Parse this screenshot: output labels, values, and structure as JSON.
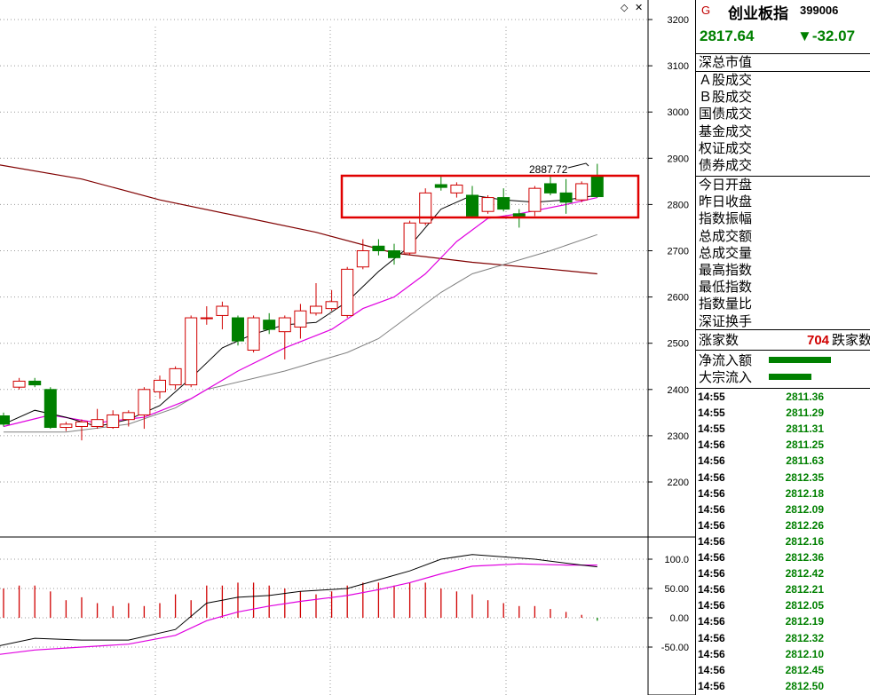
{
  "header": {
    "flag": "G",
    "name": "创业板指",
    "code": "399006"
  },
  "quote": {
    "price": "2817.64",
    "change": "▼-32.07"
  },
  "labels": {
    "group1": [
      "深总市值"
    ],
    "group2": [
      "Ａ股成交",
      "Ｂ股成交",
      "国债成交",
      "基金成交",
      "权证成交",
      "债券成交"
    ],
    "group3": [
      "今日开盘",
      "昨日收盘",
      "指数振幅",
      "总成交额",
      "总成交量",
      "最高指数",
      "最低指数",
      "指数量比",
      "深证换手"
    ],
    "rise": "涨家数",
    "fall_count": "704",
    "fall": "跌家数",
    "flow1": "净流入额",
    "flow2": "大宗流入"
  },
  "ticks": [
    [
      "14:55",
      "2811.36"
    ],
    [
      "14:55",
      "2811.29"
    ],
    [
      "14:55",
      "2811.31"
    ],
    [
      "14:56",
      "2811.25"
    ],
    [
      "14:56",
      "2811.63"
    ],
    [
      "14:56",
      "2812.35"
    ],
    [
      "14:56",
      "2812.18"
    ],
    [
      "14:56",
      "2812.09"
    ],
    [
      "14:56",
      "2812.26"
    ],
    [
      "14:56",
      "2812.16"
    ],
    [
      "14:56",
      "2812.36"
    ],
    [
      "14:56",
      "2812.42"
    ],
    [
      "14:56",
      "2812.21"
    ],
    [
      "14:56",
      "2812.05"
    ],
    [
      "14:56",
      "2812.19"
    ],
    [
      "14:56",
      "2812.32"
    ],
    [
      "14:56",
      "2812.10"
    ],
    [
      "14:56",
      "2812.45"
    ],
    [
      "14:56",
      "2812.50"
    ]
  ],
  "colors": {
    "up": "#d00000",
    "down": "#008000",
    "ma5": "#000000",
    "ma10": "#e000e0",
    "ma20": "#808080",
    "ma60": "#800000",
    "highlight": "#e00000"
  },
  "chart_data": {
    "type": "candlestick",
    "price_axis": {
      "ticks": [
        2200,
        2300,
        2400,
        2500,
        2600,
        2700,
        2800,
        2900,
        3000,
        3100,
        3200
      ]
    },
    "indicator_axis": {
      "ticks": [
        "100.0",
        "50.00",
        "0.00",
        "-50.00"
      ]
    },
    "annotation": "2887.72",
    "candles": [
      [
        2343,
        2325,
        2350,
        2320
      ],
      [
        2405,
        2418,
        2425,
        2400
      ],
      [
        2418,
        2410,
        2425,
        2405
      ],
      [
        2400,
        2318,
        2405,
        2315
      ],
      [
        2318,
        2325,
        2330,
        2310
      ],
      [
        2320,
        2330,
        2335,
        2290
      ],
      [
        2320,
        2335,
        2358,
        2315
      ],
      [
        2318,
        2345,
        2355,
        2315
      ],
      [
        2335,
        2350,
        2355,
        2320
      ],
      [
        2345,
        2400,
        2405,
        2315
      ],
      [
        2395,
        2420,
        2430,
        2380
      ],
      [
        2410,
        2445,
        2450,
        2400
      ],
      [
        2410,
        2555,
        2560,
        2405
      ],
      [
        2555,
        2555,
        2580,
        2540
      ],
      [
        2560,
        2580,
        2590,
        2530
      ],
      [
        2555,
        2505,
        2560,
        2495
      ],
      [
        2485,
        2555,
        2560,
        2480
      ],
      [
        2550,
        2530,
        2565,
        2520
      ],
      [
        2525,
        2555,
        2560,
        2465
      ],
      [
        2535,
        2570,
        2585,
        2510
      ],
      [
        2565,
        2580,
        2630,
        2560
      ],
      [
        2575,
        2590,
        2615,
        2570
      ],
      [
        2560,
        2660,
        2665,
        2555
      ],
      [
        2665,
        2700,
        2725,
        2660
      ],
      [
        2710,
        2700,
        2725,
        2690
      ],
      [
        2700,
        2685,
        2715,
        2670
      ],
      [
        2695,
        2760,
        2765,
        2690
      ],
      [
        2760,
        2825,
        2835,
        2755
      ],
      [
        2843,
        2837,
        2860,
        2830
      ],
      [
        2825,
        2842,
        2848,
        2815
      ],
      [
        2820,
        2775,
        2840,
        2770
      ],
      [
        2785,
        2815,
        2820,
        2780
      ],
      [
        2815,
        2790,
        2835,
        2785
      ],
      [
        2780,
        2775,
        2790,
        2750
      ],
      [
        2785,
        2835,
        2840,
        2775
      ],
      [
        2845,
        2825,
        2860,
        2820
      ],
      [
        2825,
        2805,
        2855,
        2780
      ],
      [
        2810,
        2845,
        2850,
        2805
      ],
      [
        2860,
        2817,
        2888,
        2815
      ]
    ],
    "ma5": [
      [
        0,
        2325
      ],
      [
        2,
        2355
      ],
      [
        4,
        2340
      ],
      [
        6,
        2320
      ],
      [
        8,
        2335
      ],
      [
        10,
        2365
      ],
      [
        12,
        2425
      ],
      [
        14,
        2490
      ],
      [
        16,
        2520
      ],
      [
        18,
        2540
      ],
      [
        20,
        2545
      ],
      [
        22,
        2590
      ],
      [
        24,
        2655
      ],
      [
        26,
        2710
      ],
      [
        28,
        2790
      ],
      [
        30,
        2820
      ],
      [
        32,
        2810
      ],
      [
        34,
        2805
      ],
      [
        36,
        2810
      ],
      [
        38,
        2820
      ]
    ],
    "ma10": [
      [
        0,
        2320
      ],
      [
        3,
        2345
      ],
      [
        6,
        2328
      ],
      [
        9,
        2340
      ],
      [
        12,
        2380
      ],
      [
        15,
        2440
      ],
      [
        18,
        2490
      ],
      [
        21,
        2530
      ],
      [
        23,
        2575
      ],
      [
        25,
        2600
      ],
      [
        27,
        2650
      ],
      [
        29,
        2720
      ],
      [
        31,
        2770
      ],
      [
        33,
        2780
      ],
      [
        36,
        2800
      ],
      [
        38,
        2815
      ]
    ],
    "ma20": [
      [
        0,
        2308
      ],
      [
        4,
        2308
      ],
      [
        8,
        2325
      ],
      [
        11,
        2360
      ],
      [
        13,
        2400
      ],
      [
        18,
        2440
      ],
      [
        22,
        2480
      ],
      [
        24,
        2510
      ],
      [
        26,
        2560
      ],
      [
        28,
        2610
      ],
      [
        30,
        2650
      ],
      [
        32,
        2670
      ],
      [
        35,
        2700
      ],
      [
        38,
        2735
      ]
    ],
    "ma60": [
      [
        -1,
        2890
      ],
      [
        5,
        2855
      ],
      [
        10,
        2810
      ],
      [
        15,
        2775
      ],
      [
        20,
        2740
      ],
      [
        25,
        2695
      ],
      [
        30,
        2675
      ],
      [
        35,
        2660
      ],
      [
        38,
        2650
      ]
    ],
    "indicator": {
      "volume_bars": [
        50,
        55,
        55,
        45,
        30,
        35,
        25,
        20,
        25,
        20,
        25,
        40,
        30,
        55,
        55,
        60,
        60,
        55,
        50,
        45,
        40,
        45,
        55,
        60,
        60,
        55,
        60,
        60,
        50,
        45,
        40,
        30,
        25,
        20,
        20,
        15,
        10,
        5,
        -5
      ],
      "k": [
        [
          -1,
          -52
        ],
        [
          2,
          -35
        ],
        [
          5,
          -38
        ],
        [
          8,
          -38
        ],
        [
          11,
          -20
        ],
        [
          13,
          25
        ],
        [
          15,
          35
        ],
        [
          17,
          38
        ],
        [
          19,
          45
        ],
        [
          22,
          50
        ],
        [
          24,
          65
        ],
        [
          26,
          80
        ],
        [
          28,
          100
        ],
        [
          30,
          108
        ],
        [
          34,
          100
        ],
        [
          37,
          90
        ],
        [
          38,
          87
        ]
      ],
      "d": [
        [
          -1,
          -65
        ],
        [
          2,
          -55
        ],
        [
          5,
          -50
        ],
        [
          8,
          -45
        ],
        [
          11,
          -30
        ],
        [
          13,
          -5
        ],
        [
          15,
          10
        ],
        [
          17,
          20
        ],
        [
          19,
          28
        ],
        [
          22,
          38
        ],
        [
          24,
          48
        ],
        [
          26,
          60
        ],
        [
          28,
          75
        ],
        [
          30,
          88
        ],
        [
          33,
          92
        ],
        [
          36,
          90
        ],
        [
          38,
          90
        ]
      ]
    }
  }
}
